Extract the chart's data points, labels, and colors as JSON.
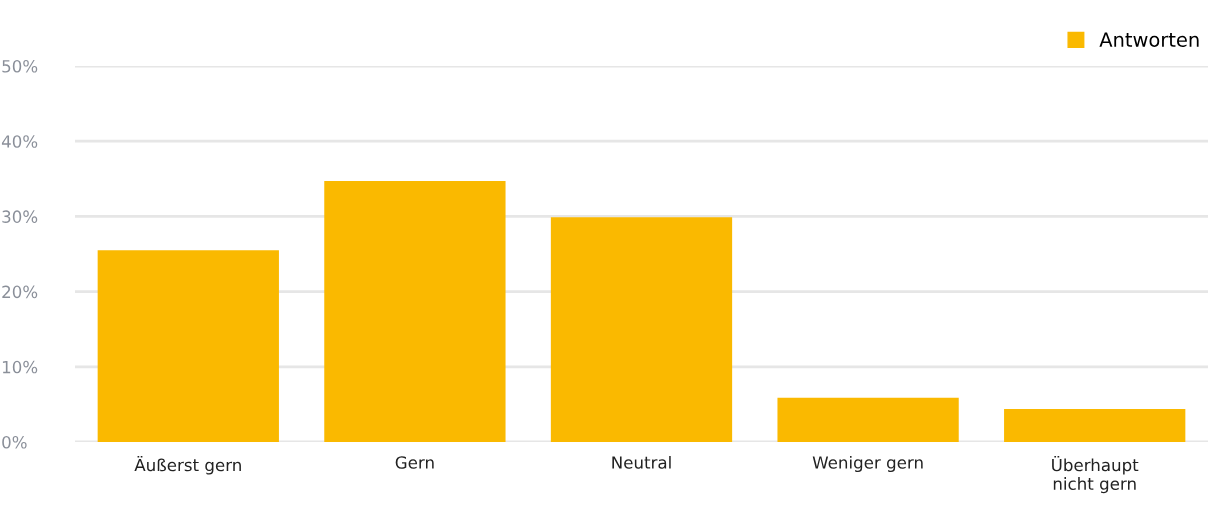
{
  "chart_data": {
    "type": "bar",
    "categories": [
      "Äußerst gern",
      "Gern",
      "Neutral",
      "Weniger gern",
      "Überhaupt\nnicht gern"
    ],
    "series": [
      {
        "name": "Antworten",
        "color": "#fab900",
        "values": [
          25.5,
          34.7,
          29.9,
          5.9,
          4.4
        ]
      }
    ],
    "ylim": [
      0,
      50
    ],
    "yticks": [
      {
        "value": 0,
        "label": "0%"
      },
      {
        "value": 10,
        "label": "10%"
      },
      {
        "value": 20,
        "label": "20%"
      },
      {
        "value": 30,
        "label": "30%"
      },
      {
        "value": 40,
        "label": "40%"
      },
      {
        "value": 50,
        "label": "50%"
      }
    ],
    "grid": "y",
    "legend": "top right"
  }
}
